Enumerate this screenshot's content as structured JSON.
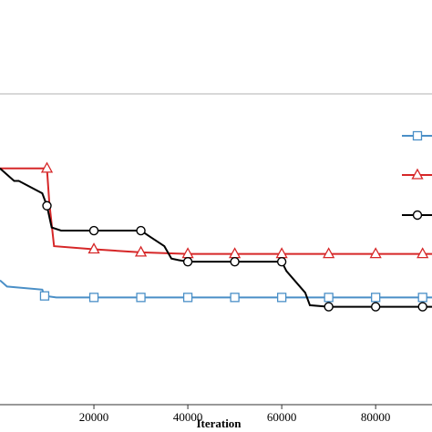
{
  "chart_data": {
    "type": "line",
    "xlabel": "Iteration",
    "ylabel": "",
    "xlim": [
      0,
      92000
    ],
    "ylim": [
      0,
      100
    ],
    "x_ticks": [
      20000,
      40000,
      60000,
      80000
    ],
    "x_tick_labels": [
      "20000",
      "40000",
      "60000",
      "80000"
    ],
    "grid": false,
    "legend_position": "right",
    "series": [
      {
        "color": "#4a8fc7",
        "marker": "square",
        "points": [
          [
            0,
            40
          ],
          [
            1500,
            38
          ],
          [
            9000,
            37
          ],
          [
            9500,
            35
          ],
          [
            12000,
            34.5
          ],
          [
            20000,
            34.5
          ],
          [
            30000,
            34.5
          ],
          [
            40000,
            34.5
          ],
          [
            50000,
            34.5
          ],
          [
            60000,
            34.5
          ],
          [
            70000,
            34.5
          ],
          [
            80000,
            34.5
          ],
          [
            92000,
            34.5
          ]
        ],
        "marker_points": [
          [
            9500,
            35
          ],
          [
            20000,
            34.5
          ],
          [
            30000,
            34.5
          ],
          [
            40000,
            34.5
          ],
          [
            50000,
            34.5
          ],
          [
            60000,
            34.5
          ],
          [
            70000,
            34.5
          ],
          [
            80000,
            34.5
          ],
          [
            90000,
            34.5
          ]
        ]
      },
      {
        "color": "#d62728",
        "marker": "triangle",
        "points": [
          [
            0,
            76
          ],
          [
            9000,
            76
          ],
          [
            10000,
            76
          ],
          [
            10500,
            65
          ],
          [
            11500,
            51
          ],
          [
            20000,
            50
          ],
          [
            30000,
            49
          ],
          [
            40000,
            48.5
          ],
          [
            50000,
            48.5
          ],
          [
            60000,
            48.5
          ],
          [
            70000,
            48.5
          ],
          [
            80000,
            48.5
          ],
          [
            92000,
            48.5
          ]
        ],
        "marker_points": [
          [
            10000,
            76
          ],
          [
            20000,
            50
          ],
          [
            30000,
            49
          ],
          [
            40000,
            48.5
          ],
          [
            50000,
            48.5
          ],
          [
            60000,
            48.5
          ],
          [
            70000,
            48.5
          ],
          [
            80000,
            48.5
          ],
          [
            90000,
            48.5
          ]
        ]
      },
      {
        "color": "#000000",
        "marker": "circle",
        "points": [
          [
            0,
            76
          ],
          [
            3000,
            72
          ],
          [
            4000,
            72
          ],
          [
            9000,
            68
          ],
          [
            10000,
            64
          ],
          [
            11000,
            57
          ],
          [
            13000,
            56
          ],
          [
            20000,
            56
          ],
          [
            30000,
            56
          ],
          [
            32000,
            54
          ],
          [
            35000,
            51
          ],
          [
            36500,
            47
          ],
          [
            38000,
            46.5
          ],
          [
            40000,
            46
          ],
          [
            50000,
            46
          ],
          [
            60000,
            46
          ],
          [
            61000,
            43
          ],
          [
            65000,
            36
          ],
          [
            66000,
            32
          ],
          [
            70000,
            31.5
          ],
          [
            80000,
            31.5
          ],
          [
            92000,
            31.5
          ]
        ],
        "marker_points": [
          [
            10000,
            64
          ],
          [
            20000,
            56
          ],
          [
            30000,
            56
          ],
          [
            40000,
            46
          ],
          [
            50000,
            46
          ],
          [
            60000,
            46
          ],
          [
            70000,
            31.5
          ],
          [
            80000,
            31.5
          ],
          [
            90000,
            31.5
          ]
        ]
      }
    ],
    "legend_entries": [
      {
        "color": "#4a8fc7",
        "marker": "square"
      },
      {
        "color": "#d62728",
        "marker": "triangle"
      },
      {
        "color": "#000000",
        "marker": "circle"
      }
    ]
  }
}
